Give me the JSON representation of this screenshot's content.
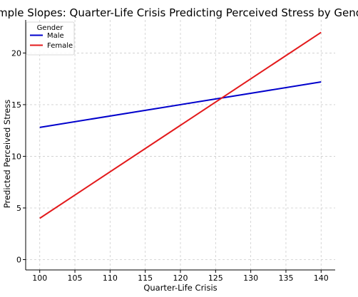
{
  "chart_data": {
    "type": "line",
    "title": "Simple Slopes: Quarter-Life Crisis Predicting Perceived Stress by Gender",
    "xlabel": "Quarter-Life Crisis",
    "ylabel": "Predicted Perceived Stress",
    "xlim": [
      98,
      142
    ],
    "ylim": [
      -1,
      23.2
    ],
    "x_ticks": [
      100,
      105,
      110,
      115,
      120,
      125,
      130,
      135,
      140
    ],
    "y_ticks": [
      0,
      5,
      10,
      15,
      20
    ],
    "grid": true,
    "legend": {
      "title": "Gender",
      "placement": "top-left"
    },
    "series": [
      {
        "name": "Male",
        "color": "#0000cc",
        "x": [
          100,
          140
        ],
        "y": [
          12.8,
          17.2
        ]
      },
      {
        "name": "Female",
        "color": "#e31a1c",
        "x": [
          100,
          140
        ],
        "y": [
          4.0,
          22.0
        ]
      }
    ]
  }
}
